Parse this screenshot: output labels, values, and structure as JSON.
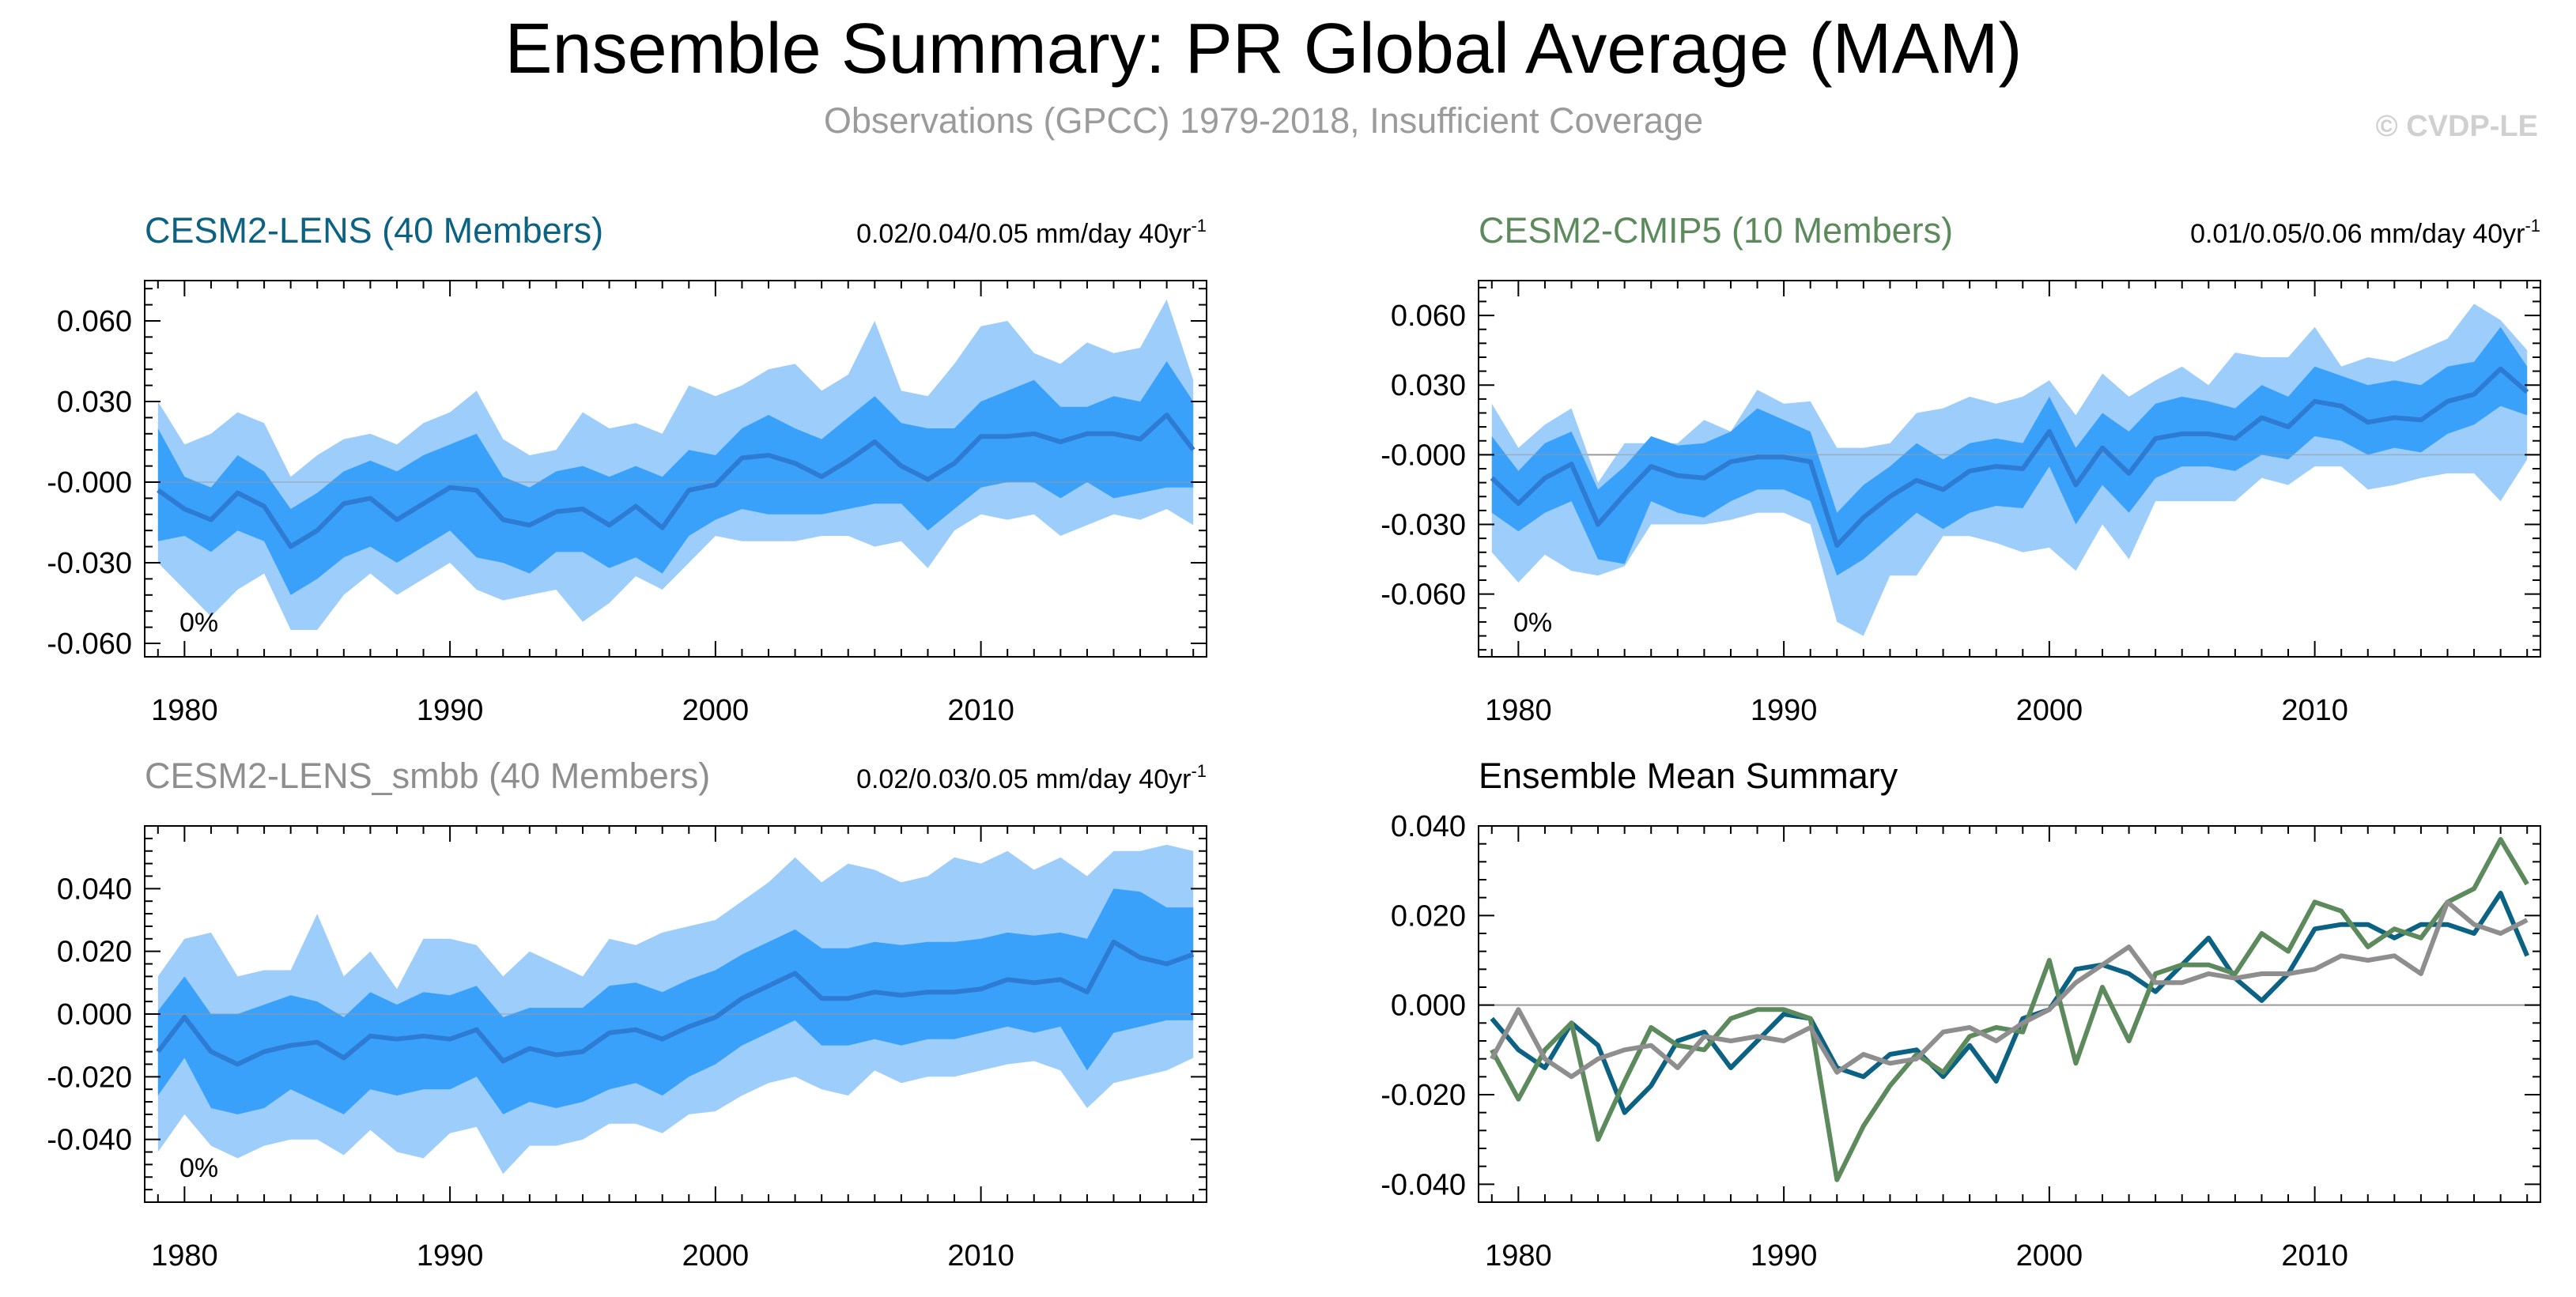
{
  "header": {
    "title": "Ensemble Summary: PR Global Average (MAM)",
    "subtitle": "Observations (GPCC) 1979-2018, Insufficient Coverage",
    "watermark": "© CVDP-LE"
  },
  "colors": {
    "outer_band": "#9dcdfa",
    "inner_band": "#3aa1fb",
    "mean_line": "#2d7bd2",
    "lens": "#0b6283",
    "cmip5": "#5d8a5c",
    "smbb": "#8e8e8e",
    "frame": "#000000",
    "zero_line": "#9a9a9a",
    "subtitle": "#9b9b9b",
    "watermark": "#d0d0d0"
  },
  "chart_data": [
    {
      "type": "area",
      "id": "lens",
      "title": "CESM2-LENS (40 Members)",
      "trend_label": "0.02/0.04/0.05 mm/day 40yr",
      "trend_sup": "-1",
      "coverage_label": "0%",
      "xlim": [
        1978.5,
        2018.5
      ],
      "ylim": [
        -0.065,
        0.075
      ],
      "x_ticks": [
        1980,
        1990,
        2000,
        2010
      ],
      "y_ticks": [
        {
          "value": 0.06,
          "label": "0.060"
        },
        {
          "value": 0.03,
          "label": "0.030"
        },
        {
          "value": 0.0,
          "label": "-0.000"
        },
        {
          "value": -0.03,
          "label": "-0.030"
        },
        {
          "value": -0.06,
          "label": "-0.060"
        }
      ],
      "x": [
        1979,
        1980,
        1981,
        1982,
        1983,
        1984,
        1985,
        1986,
        1987,
        1988,
        1989,
        1990,
        1991,
        1992,
        1993,
        1994,
        1995,
        1996,
        1997,
        1998,
        1999,
        2000,
        2001,
        2002,
        2003,
        2004,
        2005,
        2006,
        2007,
        2008,
        2009,
        2010,
        2011,
        2012,
        2013,
        2014,
        2015,
        2016,
        2017,
        2018
      ],
      "mean": [
        -0.003,
        -0.01,
        -0.014,
        -0.004,
        -0.009,
        -0.024,
        -0.018,
        -0.008,
        -0.006,
        -0.014,
        -0.008,
        -0.002,
        -0.003,
        -0.014,
        -0.016,
        -0.011,
        -0.01,
        -0.016,
        -0.009,
        -0.017,
        -0.003,
        -0.001,
        0.009,
        0.01,
        0.007,
        0.002,
        0.008,
        0.015,
        0.006,
        0.001,
        0.007,
        0.017,
        0.017,
        0.018,
        0.015,
        0.018,
        0.018,
        0.016,
        0.025,
        0.012
      ],
      "inner_lo": [
        -0.022,
        -0.02,
        -0.026,
        -0.018,
        -0.022,
        -0.042,
        -0.036,
        -0.028,
        -0.024,
        -0.03,
        -0.024,
        -0.018,
        -0.028,
        -0.03,
        -0.034,
        -0.026,
        -0.026,
        -0.032,
        -0.028,
        -0.034,
        -0.02,
        -0.014,
        -0.01,
        -0.012,
        -0.012,
        -0.012,
        -0.01,
        -0.008,
        -0.008,
        -0.018,
        -0.01,
        -0.002,
        0.0,
        0.0,
        -0.006,
        0.0,
        -0.006,
        -0.004,
        -0.002,
        -0.002
      ],
      "inner_hi": [
        0.02,
        0.002,
        -0.002,
        0.01,
        0.004,
        -0.01,
        -0.004,
        0.004,
        0.008,
        0.004,
        0.01,
        0.014,
        0.018,
        0.002,
        -0.002,
        0.004,
        0.006,
        0.002,
        0.006,
        0.002,
        0.012,
        0.01,
        0.02,
        0.025,
        0.02,
        0.016,
        0.024,
        0.032,
        0.022,
        0.02,
        0.02,
        0.03,
        0.034,
        0.038,
        0.028,
        0.028,
        0.032,
        0.03,
        0.045,
        0.03
      ],
      "outer_lo": [
        -0.03,
        -0.04,
        -0.05,
        -0.04,
        -0.034,
        -0.055,
        -0.055,
        -0.042,
        -0.034,
        -0.042,
        -0.036,
        -0.03,
        -0.04,
        -0.044,
        -0.042,
        -0.04,
        -0.052,
        -0.045,
        -0.035,
        -0.04,
        -0.03,
        -0.02,
        -0.022,
        -0.022,
        -0.022,
        -0.02,
        -0.02,
        -0.024,
        -0.022,
        -0.032,
        -0.018,
        -0.012,
        -0.014,
        -0.012,
        -0.02,
        -0.016,
        -0.012,
        -0.014,
        -0.01,
        -0.016
      ],
      "outer_hi": [
        0.03,
        0.014,
        0.018,
        0.026,
        0.022,
        0.002,
        0.01,
        0.016,
        0.018,
        0.014,
        0.022,
        0.026,
        0.034,
        0.016,
        0.01,
        0.012,
        0.026,
        0.02,
        0.022,
        0.018,
        0.036,
        0.032,
        0.036,
        0.042,
        0.044,
        0.034,
        0.04,
        0.06,
        0.034,
        0.032,
        0.044,
        0.058,
        0.06,
        0.048,
        0.044,
        0.052,
        0.048,
        0.05,
        0.068,
        0.038
      ]
    },
    {
      "type": "area",
      "id": "cmip5",
      "title": "CESM2-CMIP5 (10 Members)",
      "trend_label": "0.01/0.05/0.06 mm/day 40yr",
      "trend_sup": "-1",
      "coverage_label": "0%",
      "xlim": [
        1978.5,
        2018.5
      ],
      "ylim": [
        -0.087,
        0.075
      ],
      "x_ticks": [
        1980,
        1990,
        2000,
        2010
      ],
      "y_ticks": [
        {
          "value": 0.06,
          "label": "0.060"
        },
        {
          "value": 0.03,
          "label": "0.030"
        },
        {
          "value": 0.0,
          "label": "-0.000"
        },
        {
          "value": -0.03,
          "label": "-0.030"
        },
        {
          "value": -0.06,
          "label": "-0.060"
        }
      ],
      "x": [
        1979,
        1980,
        1981,
        1982,
        1983,
        1984,
        1985,
        1986,
        1987,
        1988,
        1989,
        1990,
        1991,
        1992,
        1993,
        1994,
        1995,
        1996,
        1997,
        1998,
        1999,
        2000,
        2001,
        2002,
        2003,
        2004,
        2005,
        2006,
        2007,
        2008,
        2009,
        2010,
        2011,
        2012,
        2013,
        2014,
        2015,
        2016,
        2017,
        2018
      ],
      "mean": [
        -0.01,
        -0.021,
        -0.01,
        -0.004,
        -0.03,
        -0.017,
        -0.005,
        -0.009,
        -0.01,
        -0.003,
        -0.001,
        -0.001,
        -0.003,
        -0.039,
        -0.027,
        -0.018,
        -0.011,
        -0.015,
        -0.007,
        -0.005,
        -0.006,
        0.01,
        -0.013,
        0.003,
        -0.008,
        0.007,
        0.009,
        0.009,
        0.007,
        0.016,
        0.012,
        0.023,
        0.021,
        0.014,
        0.016,
        0.015,
        0.023,
        0.026,
        0.037,
        0.027
      ],
      "inner_lo": [
        -0.025,
        -0.033,
        -0.025,
        -0.02,
        -0.045,
        -0.047,
        -0.02,
        -0.025,
        -0.027,
        -0.02,
        -0.015,
        -0.015,
        -0.02,
        -0.052,
        -0.045,
        -0.035,
        -0.025,
        -0.032,
        -0.025,
        -0.022,
        -0.023,
        -0.005,
        -0.03,
        -0.013,
        -0.025,
        -0.01,
        -0.005,
        -0.005,
        -0.007,
        0.0,
        -0.002,
        0.008,
        0.006,
        0.0,
        0.003,
        0.001,
        0.009,
        0.013,
        0.021,
        0.017
      ],
      "inner_hi": [
        0.008,
        -0.007,
        0.005,
        0.01,
        -0.015,
        -0.005,
        0.008,
        0.004,
        0.005,
        0.01,
        0.02,
        0.015,
        0.01,
        -0.025,
        -0.013,
        -0.005,
        0.005,
        -0.002,
        0.005,
        0.007,
        0.005,
        0.025,
        0.003,
        0.018,
        0.01,
        0.022,
        0.025,
        0.023,
        0.02,
        0.03,
        0.025,
        0.038,
        0.034,
        0.03,
        0.032,
        0.03,
        0.038,
        0.04,
        0.055,
        0.038
      ],
      "outer_lo": [
        -0.042,
        -0.055,
        -0.043,
        -0.05,
        -0.052,
        -0.048,
        -0.03,
        -0.03,
        -0.03,
        -0.028,
        -0.025,
        -0.025,
        -0.03,
        -0.072,
        -0.078,
        -0.052,
        -0.052,
        -0.035,
        -0.035,
        -0.038,
        -0.042,
        -0.04,
        -0.05,
        -0.03,
        -0.045,
        -0.02,
        -0.02,
        -0.02,
        -0.02,
        -0.01,
        -0.013,
        -0.005,
        -0.005,
        -0.015,
        -0.013,
        -0.01,
        -0.008,
        -0.008,
        -0.02,
        -0.002
      ],
      "outer_hi": [
        0.022,
        0.003,
        0.013,
        0.02,
        -0.012,
        0.005,
        0.005,
        0.005,
        0.015,
        0.01,
        0.028,
        0.022,
        0.023,
        0.003,
        0.003,
        0.005,
        0.018,
        0.02,
        0.025,
        0.022,
        0.025,
        0.032,
        0.017,
        0.035,
        0.025,
        0.032,
        0.038,
        0.03,
        0.044,
        0.042,
        0.042,
        0.055,
        0.038,
        0.042,
        0.04,
        0.045,
        0.05,
        0.065,
        0.058,
        0.045
      ]
    },
    {
      "type": "area",
      "id": "smbb",
      "title": "CESM2-LENS_smbb (40 Members)",
      "trend_label": "0.02/0.03/0.05 mm/day 40yr",
      "trend_sup": "-1",
      "coverage_label": "0%",
      "xlim": [
        1978.5,
        2018.5
      ],
      "ylim": [
        -0.06,
        0.06
      ],
      "x_ticks": [
        1980,
        1990,
        2000,
        2010
      ],
      "y_ticks": [
        {
          "value": 0.04,
          "label": "0.040"
        },
        {
          "value": 0.02,
          "label": "0.020"
        },
        {
          "value": 0.0,
          "label": "0.000"
        },
        {
          "value": -0.02,
          "label": "-0.020"
        },
        {
          "value": -0.04,
          "label": "-0.040"
        }
      ],
      "x": [
        1979,
        1980,
        1981,
        1982,
        1983,
        1984,
        1985,
        1986,
        1987,
        1988,
        1989,
        1990,
        1991,
        1992,
        1993,
        1994,
        1995,
        1996,
        1997,
        1998,
        1999,
        2000,
        2001,
        2002,
        2003,
        2004,
        2005,
        2006,
        2007,
        2008,
        2009,
        2010,
        2011,
        2012,
        2013,
        2014,
        2015,
        2016,
        2017,
        2018
      ],
      "mean": [
        -0.012,
        -0.001,
        -0.012,
        -0.016,
        -0.012,
        -0.01,
        -0.009,
        -0.014,
        -0.007,
        -0.008,
        -0.007,
        -0.008,
        -0.005,
        -0.015,
        -0.011,
        -0.013,
        -0.012,
        -0.006,
        -0.005,
        -0.008,
        -0.004,
        -0.001,
        0.005,
        0.009,
        0.013,
        0.005,
        0.005,
        0.007,
        0.006,
        0.007,
        0.007,
        0.008,
        0.011,
        0.01,
        0.011,
        0.007,
        0.023,
        0.018,
        0.016,
        0.019
      ],
      "inner_lo": [
        -0.026,
        -0.014,
        -0.03,
        -0.032,
        -0.03,
        -0.024,
        -0.028,
        -0.032,
        -0.024,
        -0.026,
        -0.024,
        -0.024,
        -0.02,
        -0.032,
        -0.028,
        -0.03,
        -0.028,
        -0.024,
        -0.022,
        -0.026,
        -0.02,
        -0.016,
        -0.01,
        -0.006,
        -0.002,
        -0.01,
        -0.01,
        -0.008,
        -0.01,
        -0.008,
        -0.008,
        -0.006,
        -0.004,
        -0.006,
        -0.004,
        -0.018,
        -0.006,
        -0.004,
        -0.002,
        -0.002
      ],
      "inner_hi": [
        0.001,
        0.012,
        0.0,
        0.0,
        0.003,
        0.006,
        0.004,
        -0.001,
        0.007,
        0.003,
        0.007,
        0.006,
        0.009,
        -0.001,
        0.002,
        0.002,
        0.002,
        0.009,
        0.01,
        0.007,
        0.011,
        0.014,
        0.019,
        0.023,
        0.027,
        0.021,
        0.021,
        0.023,
        0.022,
        0.023,
        0.023,
        0.024,
        0.026,
        0.025,
        0.026,
        0.024,
        0.04,
        0.039,
        0.034,
        0.034
      ],
      "outer_lo": [
        -0.044,
        -0.032,
        -0.042,
        -0.046,
        -0.042,
        -0.04,
        -0.04,
        -0.045,
        -0.037,
        -0.044,
        -0.046,
        -0.038,
        -0.036,
        -0.051,
        -0.042,
        -0.042,
        -0.04,
        -0.035,
        -0.035,
        -0.038,
        -0.032,
        -0.031,
        -0.026,
        -0.022,
        -0.02,
        -0.024,
        -0.026,
        -0.018,
        -0.022,
        -0.02,
        -0.02,
        -0.018,
        -0.016,
        -0.015,
        -0.018,
        -0.03,
        -0.022,
        -0.02,
        -0.018,
        -0.014
      ],
      "outer_hi": [
        0.012,
        0.024,
        0.026,
        0.012,
        0.014,
        0.014,
        0.032,
        0.012,
        0.02,
        0.008,
        0.024,
        0.024,
        0.022,
        0.012,
        0.02,
        0.016,
        0.012,
        0.024,
        0.022,
        0.026,
        0.028,
        0.03,
        0.036,
        0.042,
        0.05,
        0.042,
        0.048,
        0.046,
        0.042,
        0.044,
        0.05,
        0.048,
        0.052,
        0.046,
        0.05,
        0.044,
        0.052,
        0.052,
        0.054,
        0.052
      ]
    },
    {
      "type": "line",
      "id": "ensmean",
      "title": "Ensemble Mean Summary",
      "xlim": [
        1978.5,
        2018.5
      ],
      "ylim": [
        -0.044,
        0.04
      ],
      "x_ticks": [
        1980,
        1990,
        2000,
        2010
      ],
      "y_ticks": [
        {
          "value": 0.04,
          "label": "0.040"
        },
        {
          "value": 0.02,
          "label": "0.020"
        },
        {
          "value": 0.0,
          "label": "0.000"
        },
        {
          "value": -0.02,
          "label": "-0.020"
        },
        {
          "value": -0.04,
          "label": "-0.040"
        }
      ],
      "x": [
        1979,
        1980,
        1981,
        1982,
        1983,
        1984,
        1985,
        1986,
        1987,
        1988,
        1989,
        1990,
        1991,
        1992,
        1993,
        1994,
        1995,
        1996,
        1997,
        1998,
        1999,
        2000,
        2001,
        2002,
        2003,
        2004,
        2005,
        2006,
        2007,
        2008,
        2009,
        2010,
        2011,
        2012,
        2013,
        2014,
        2015,
        2016,
        2017,
        2018
      ],
      "series": [
        {
          "name": "CESM2-LENS",
          "color_key": "lens",
          "values": [
            -0.003,
            -0.01,
            -0.014,
            -0.004,
            -0.009,
            -0.024,
            -0.018,
            -0.008,
            -0.006,
            -0.014,
            -0.008,
            -0.002,
            -0.003,
            -0.014,
            -0.016,
            -0.011,
            -0.01,
            -0.016,
            -0.009,
            -0.017,
            -0.003,
            -0.001,
            0.008,
            0.009,
            0.007,
            0.003,
            0.009,
            0.015,
            0.006,
            0.001,
            0.007,
            0.017,
            0.018,
            0.018,
            0.015,
            0.018,
            0.018,
            0.016,
            0.025,
            0.011
          ]
        },
        {
          "name": "CESM2-CMIP5",
          "color_key": "cmip5",
          "values": [
            -0.01,
            -0.021,
            -0.01,
            -0.004,
            -0.03,
            -0.017,
            -0.005,
            -0.009,
            -0.01,
            -0.003,
            -0.001,
            -0.001,
            -0.003,
            -0.039,
            -0.027,
            -0.018,
            -0.011,
            -0.015,
            -0.007,
            -0.005,
            -0.006,
            0.01,
            -0.013,
            0.004,
            -0.008,
            0.007,
            0.009,
            0.009,
            0.007,
            0.016,
            0.012,
            0.023,
            0.021,
            0.013,
            0.017,
            0.015,
            0.023,
            0.026,
            0.037,
            0.027
          ]
        },
        {
          "name": "CESM2-LENS_smbb",
          "color_key": "smbb",
          "values": [
            -0.012,
            -0.001,
            -0.012,
            -0.016,
            -0.012,
            -0.01,
            -0.009,
            -0.014,
            -0.007,
            -0.008,
            -0.007,
            -0.008,
            -0.005,
            -0.015,
            -0.011,
            -0.013,
            -0.012,
            -0.006,
            -0.005,
            -0.008,
            -0.004,
            -0.001,
            0.005,
            0.009,
            0.013,
            0.005,
            0.005,
            0.007,
            0.006,
            0.007,
            0.007,
            0.008,
            0.011,
            0.01,
            0.011,
            0.007,
            0.023,
            0.018,
            0.016,
            0.019
          ]
        }
      ]
    }
  ]
}
